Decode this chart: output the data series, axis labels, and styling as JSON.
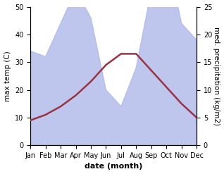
{
  "months": [
    "Jan",
    "Feb",
    "Mar",
    "Apr",
    "May",
    "Jun",
    "Jul",
    "Aug",
    "Sep",
    "Oct",
    "Nov",
    "Dec"
  ],
  "month_positions": [
    0,
    1,
    2,
    3,
    4,
    5,
    6,
    7,
    8,
    9,
    10,
    11
  ],
  "max_temp": [
    9,
    11,
    14,
    18,
    23,
    29,
    33,
    33,
    27,
    21,
    15,
    10
  ],
  "precipitation": [
    17,
    16,
    22,
    28,
    23,
    10,
    7,
    14,
    28,
    35,
    22,
    19
  ],
  "fill_color": "#aab4e8",
  "fill_alpha": 0.75,
  "line_color": "#993344",
  "line_width": 1.8,
  "xlabel": "date (month)",
  "ylabel_left": "max temp (C)",
  "ylabel_right": "med. precipitation (kg/m2)",
  "ylim_left": [
    0,
    50
  ],
  "ylim_right": [
    0,
    25
  ],
  "yticks_left": [
    0,
    10,
    20,
    30,
    40,
    50
  ],
  "yticks_right": [
    0,
    5,
    10,
    15,
    20,
    25
  ],
  "background_color": "#ffffff",
  "xlabel_fontsize": 8,
  "ylabel_fontsize": 7.5,
  "tick_fontsize": 7
}
